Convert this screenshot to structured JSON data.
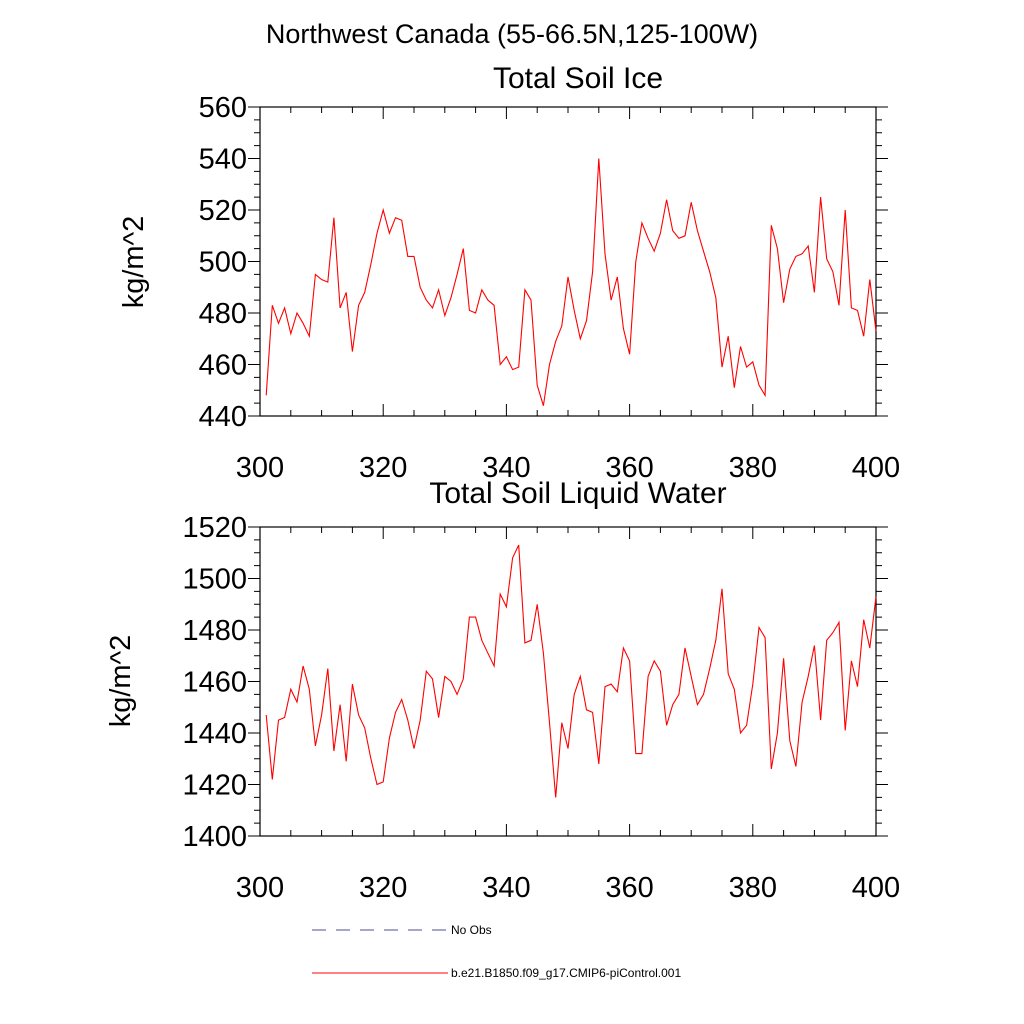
{
  "suptitle": "Northwest Canada (55-66.5N,125-100W)",
  "colors": {
    "model": "#ff0000",
    "obs": "#4b4f8a",
    "axes": "#000000"
  },
  "legend": {
    "obs_label": "No Obs",
    "model_label": "b.e21.B1850.f09_g17.CMIP6-piControl.001"
  },
  "chart_data": [
    {
      "type": "line",
      "title": "Total Soil Ice",
      "xlabel": "",
      "ylabel": "kg/m^2",
      "xlim": [
        300,
        400
      ],
      "ylim": [
        440,
        560
      ],
      "xticks": [
        300,
        320,
        340,
        360,
        380,
        400
      ],
      "yticks": [
        440,
        460,
        480,
        500,
        520,
        540,
        560
      ],
      "series": [
        {
          "name": "b.e21.B1850.f09_g17.CMIP6-piControl.001",
          "x": [
            301,
            302,
            303,
            304,
            305,
            306,
            307,
            308,
            309,
            310,
            311,
            312,
            313,
            314,
            315,
            316,
            317,
            318,
            319,
            320,
            321,
            322,
            323,
            324,
            325,
            326,
            327,
            328,
            329,
            330,
            331,
            332,
            333,
            334,
            335,
            336,
            337,
            338,
            339,
            340,
            341,
            342,
            343,
            344,
            345,
            346,
            347,
            348,
            349,
            350,
            351,
            352,
            353,
            354,
            355,
            356,
            357,
            358,
            359,
            360,
            361,
            362,
            363,
            364,
            365,
            366,
            367,
            368,
            369,
            370,
            371,
            372,
            373,
            374,
            375,
            376,
            377,
            378,
            379,
            380,
            381,
            382,
            383,
            384,
            385,
            386,
            387,
            388,
            389,
            390,
            391,
            392,
            393,
            394,
            395,
            396,
            397,
            398,
            399,
            400
          ],
          "values": [
            448,
            483,
            476,
            482,
            472,
            480,
            476,
            471,
            495,
            493,
            492,
            517,
            482,
            488,
            465,
            483,
            488,
            499,
            511,
            520,
            511,
            517,
            516,
            502,
            502,
            490,
            485,
            482,
            489,
            479,
            486,
            495,
            505,
            481,
            480,
            489,
            485,
            483,
            460,
            463,
            458,
            459,
            489,
            485,
            452,
            444,
            460,
            469,
            475,
            494,
            481,
            470,
            477,
            496,
            540,
            503,
            485,
            494,
            474,
            464,
            500,
            515,
            509,
            504,
            511,
            524,
            512,
            509,
            510,
            523,
            512,
            504,
            496,
            486,
            459,
            471,
            451,
            467,
            459,
            461,
            452,
            448,
            514,
            505,
            484,
            497,
            502,
            503,
            506,
            488,
            525,
            501,
            496,
            483,
            520,
            482,
            481,
            471,
            493,
            473
          ]
        }
      ]
    },
    {
      "type": "line",
      "title": "Total Soil Liquid Water",
      "xlabel": "",
      "ylabel": "kg/m^2",
      "xlim": [
        300,
        400
      ],
      "ylim": [
        1400,
        1520
      ],
      "xticks": [
        300,
        320,
        340,
        360,
        380,
        400
      ],
      "yticks": [
        1400,
        1420,
        1440,
        1460,
        1480,
        1500,
        1520
      ],
      "series": [
        {
          "name": "b.e21.B1850.f09_g17.CMIP6-piControl.001",
          "x": [
            301,
            302,
            303,
            304,
            305,
            306,
            307,
            308,
            309,
            310,
            311,
            312,
            313,
            314,
            315,
            316,
            317,
            318,
            319,
            320,
            321,
            322,
            323,
            324,
            325,
            326,
            327,
            328,
            329,
            330,
            331,
            332,
            333,
            334,
            335,
            336,
            337,
            338,
            339,
            340,
            341,
            342,
            343,
            344,
            345,
            346,
            347,
            348,
            349,
            350,
            351,
            352,
            353,
            354,
            355,
            356,
            357,
            358,
            359,
            360,
            361,
            362,
            363,
            364,
            365,
            366,
            367,
            368,
            369,
            370,
            371,
            372,
            373,
            374,
            375,
            376,
            377,
            378,
            379,
            380,
            381,
            382,
            383,
            384,
            385,
            386,
            387,
            388,
            389,
            390,
            391,
            392,
            393,
            394,
            395,
            396,
            397,
            398,
            399,
            400
          ],
          "values": [
            1447,
            1422,
            1445,
            1446,
            1457,
            1452,
            1466,
            1457,
            1435,
            1447,
            1465,
            1433,
            1451,
            1429,
            1459,
            1447,
            1442,
            1430,
            1420,
            1421,
            1438,
            1448,
            1453,
            1445,
            1434,
            1445,
            1464,
            1461,
            1446,
            1462,
            1460,
            1455,
            1461,
            1485,
            1485,
            1476,
            1471,
            1466,
            1494,
            1489,
            1508,
            1513,
            1475,
            1476,
            1490,
            1471,
            1444,
            1415,
            1444,
            1434,
            1455,
            1462,
            1449,
            1448,
            1428,
            1458,
            1459,
            1456,
            1473,
            1468,
            1432,
            1432,
            1462,
            1468,
            1464,
            1443,
            1451,
            1455,
            1473,
            1462,
            1451,
            1455,
            1465,
            1476,
            1496,
            1463,
            1457,
            1440,
            1443,
            1459,
            1481,
            1477,
            1426,
            1440,
            1469,
            1437,
            1427,
            1452,
            1462,
            1474,
            1445,
            1476,
            1479,
            1483,
            1441,
            1468,
            1458,
            1484,
            1473,
            1493
          ]
        }
      ]
    }
  ]
}
